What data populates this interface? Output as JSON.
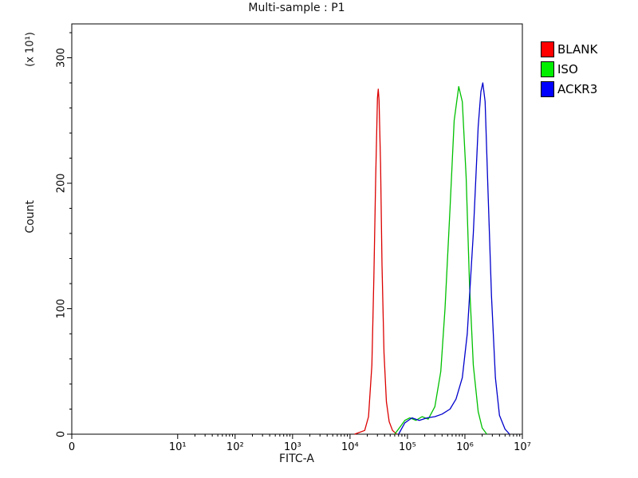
{
  "chart_data": {
    "type": "line",
    "subtype": "flow-cytometry-histogram",
    "title": "Multi-sample : P1",
    "xlabel": "FITC-A",
    "ylabel": "Count",
    "ylabel_multiplier": "(x 10¹)",
    "x_scale": "log",
    "x_ticks": [
      {
        "label": "0",
        "value": 0
      },
      {
        "label": "10¹",
        "value": 10
      },
      {
        "label": "10²",
        "value": 100
      },
      {
        "label": "10³",
        "value": 1000
      },
      {
        "label": "10⁴",
        "value": 10000
      },
      {
        "label": "10⁵",
        "value": 100000
      },
      {
        "label": "10⁶",
        "value": 1000000
      },
      {
        "label": "10⁷",
        "value": 10000000
      }
    ],
    "y_ticks": [
      0,
      100,
      200,
      300
    ],
    "ylim": [
      0,
      327
    ],
    "grid": false,
    "legend_position": "right",
    "series": [
      {
        "name": "BLANK",
        "color": "#dc0000",
        "legend_color": "#ff0000",
        "peak_x": 30000,
        "peak_count": 275,
        "points": [
          [
            12000,
            0
          ],
          [
            18000,
            3
          ],
          [
            21000,
            14
          ],
          [
            24000,
            55
          ],
          [
            26000,
            125
          ],
          [
            28000,
            205
          ],
          [
            30000,
            268
          ],
          [
            31000,
            275
          ],
          [
            32000,
            266
          ],
          [
            34000,
            215
          ],
          [
            36000,
            135
          ],
          [
            39000,
            65
          ],
          [
            43000,
            26
          ],
          [
            48000,
            10
          ],
          [
            55000,
            3
          ],
          [
            65000,
            0
          ]
        ]
      },
      {
        "name": "ISO",
        "color": "#00c000",
        "legend_color": "#00ee00",
        "peak_x": 780000,
        "peak_count": 277,
        "points": [
          [
            60000,
            0
          ],
          [
            75000,
            6
          ],
          [
            90000,
            11
          ],
          [
            110000,
            13
          ],
          [
            140000,
            11
          ],
          [
            180000,
            14
          ],
          [
            230000,
            12
          ],
          [
            300000,
            22
          ],
          [
            380000,
            50
          ],
          [
            450000,
            100
          ],
          [
            550000,
            180
          ],
          [
            650000,
            250
          ],
          [
            780000,
            277
          ],
          [
            900000,
            265
          ],
          [
            1050000,
            205
          ],
          [
            1200000,
            120
          ],
          [
            1400000,
            55
          ],
          [
            1700000,
            18
          ],
          [
            2000000,
            5
          ],
          [
            2400000,
            0
          ]
        ]
      },
      {
        "name": "ACKR3",
        "color": "#0000cc",
        "legend_color": "#0000ff",
        "peak_x": 2050000,
        "peak_count": 280,
        "points": [
          [
            70000,
            0
          ],
          [
            90000,
            9
          ],
          [
            120000,
            13
          ],
          [
            160000,
            11
          ],
          [
            220000,
            13
          ],
          [
            300000,
            14
          ],
          [
            400000,
            16
          ],
          [
            550000,
            20
          ],
          [
            700000,
            28
          ],
          [
            900000,
            45
          ],
          [
            1100000,
            80
          ],
          [
            1400000,
            160
          ],
          [
            1700000,
            245
          ],
          [
            1900000,
            273
          ],
          [
            2050000,
            280
          ],
          [
            2250000,
            265
          ],
          [
            2500000,
            200
          ],
          [
            2900000,
            110
          ],
          [
            3400000,
            45
          ],
          [
            4000000,
            15
          ],
          [
            5000000,
            4
          ],
          [
            6000000,
            0
          ]
        ]
      }
    ]
  }
}
